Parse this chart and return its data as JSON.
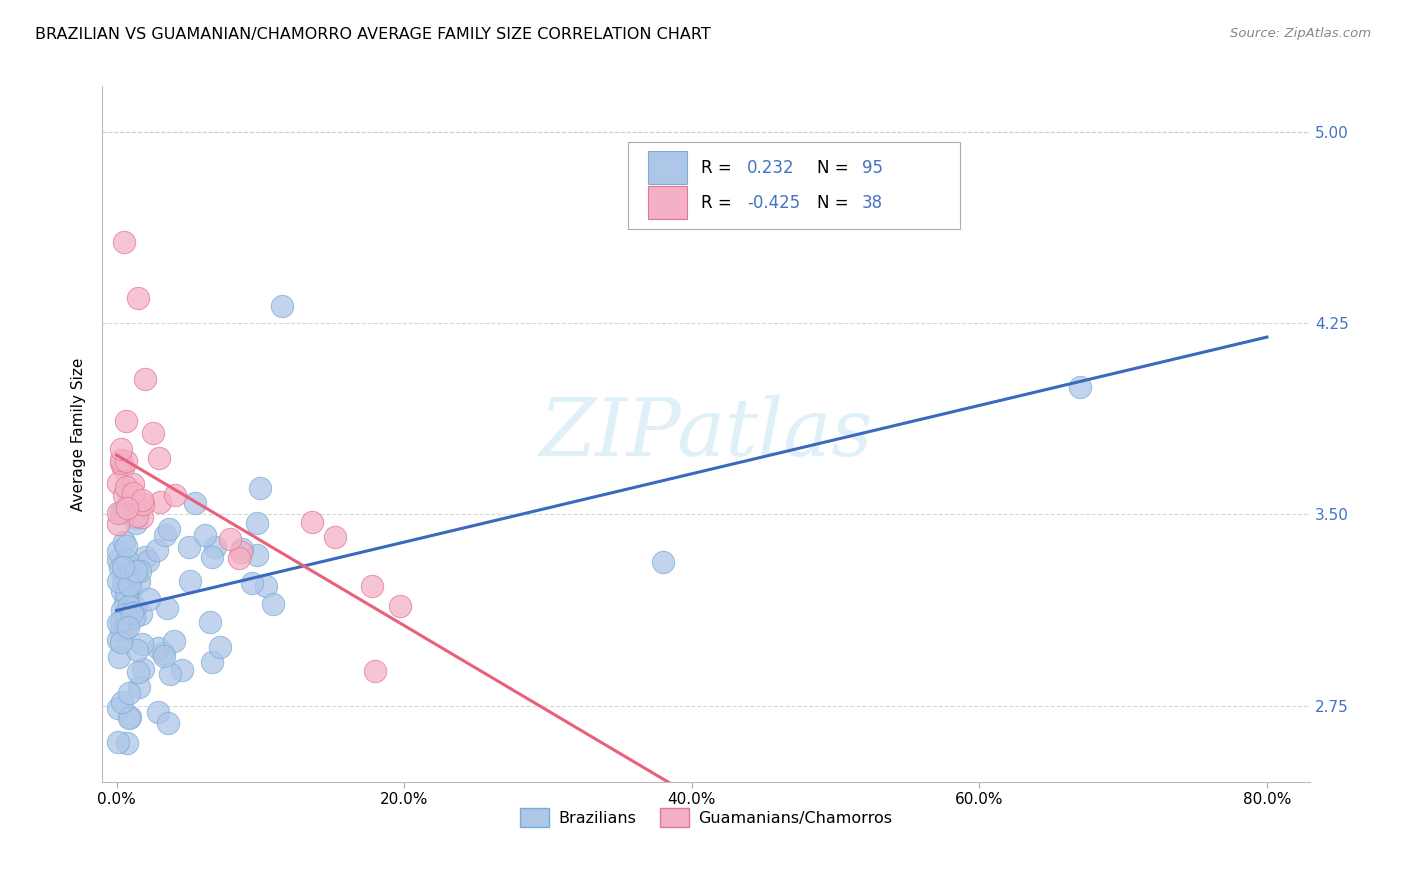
{
  "title": "BRAZILIAN VS GUAMANIAN/CHAMORRO AVERAGE FAMILY SIZE CORRELATION CHART",
  "source": "Source: ZipAtlas.com",
  "ylabel": "Average Family Size",
  "xlabel_ticks": [
    "0.0%",
    "20.0%",
    "40.0%",
    "60.0%",
    "80.0%"
  ],
  "xlabel_vals": [
    0.0,
    0.2,
    0.4,
    0.6,
    0.8
  ],
  "yticks": [
    2.75,
    3.5,
    4.25,
    5.0
  ],
  "xlim": [
    -0.01,
    0.83
  ],
  "ylim": [
    2.45,
    5.18
  ],
  "watermark": "ZIPatlas",
  "braz_color": "#aec6e8",
  "braz_edge": "#7aadd4",
  "braz_line": "#3a6abf",
  "guam_color": "#f4b0c4",
  "guam_edge": "#e07898",
  "guam_line": "#e8607a",
  "background_color": "white",
  "grid_color": "#cccccc",
  "legend_text_color": "#4472c4",
  "legend_label_color": "#333333",
  "title_fontsize": 11.5,
  "axis_fontsize": 11,
  "tick_fontsize": 11,
  "right_tick_color": "#4472c4",
  "braz_R": 0.232,
  "braz_N": 95,
  "guam_R": -0.425,
  "guam_N": 38,
  "braz_label": "Brazilians",
  "guam_label": "Guamanians/Chamorros"
}
